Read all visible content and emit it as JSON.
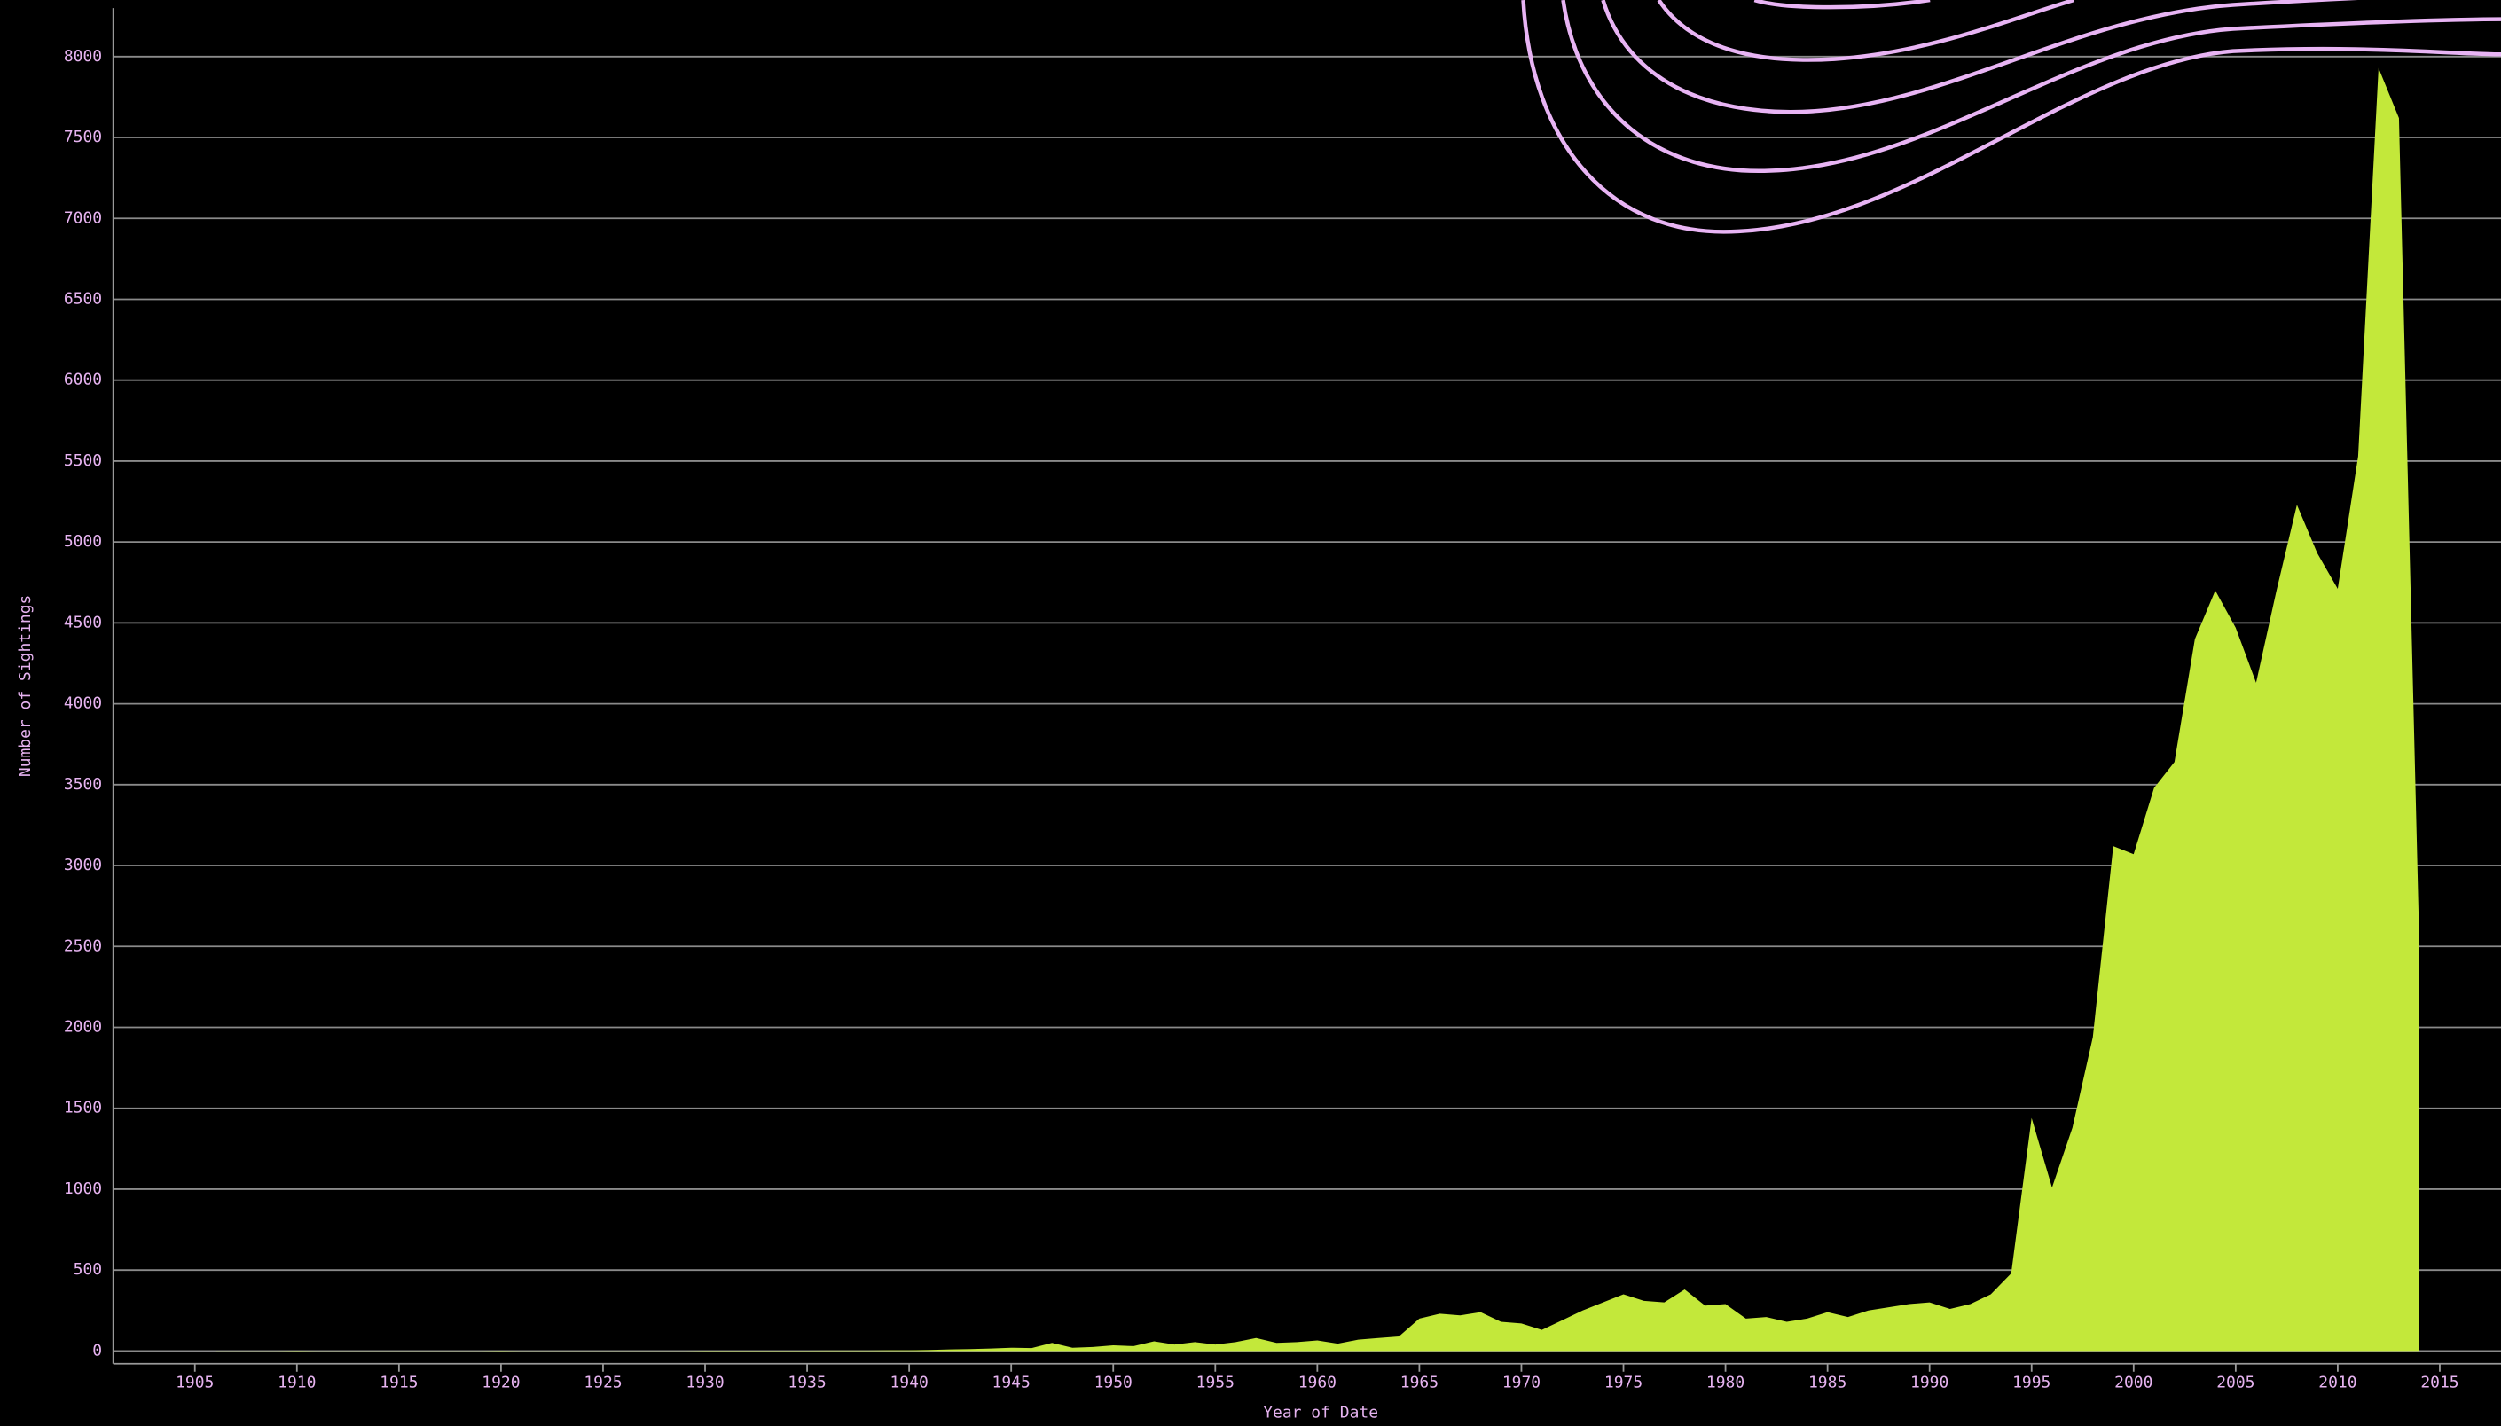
{
  "chart_data": {
    "type": "area",
    "x_label": "Year of Date",
    "y_label": "Number of Sightings",
    "x": [
      1906,
      1907,
      1908,
      1909,
      1910,
      1911,
      1912,
      1913,
      1914,
      1915,
      1916,
      1917,
      1918,
      1919,
      1920,
      1921,
      1922,
      1923,
      1924,
      1925,
      1926,
      1927,
      1928,
      1929,
      1930,
      1931,
      1932,
      1933,
      1934,
      1935,
      1936,
      1937,
      1938,
      1939,
      1940,
      1941,
      1942,
      1943,
      1944,
      1945,
      1946,
      1947,
      1948,
      1949,
      1950,
      1951,
      1952,
      1953,
      1954,
      1955,
      1956,
      1957,
      1958,
      1959,
      1960,
      1961,
      1962,
      1963,
      1964,
      1965,
      1966,
      1967,
      1968,
      1969,
      1970,
      1971,
      1972,
      1973,
      1974,
      1975,
      1976,
      1977,
      1978,
      1979,
      1980,
      1981,
      1982,
      1983,
      1984,
      1985,
      1986,
      1987,
      1988,
      1989,
      1990,
      1991,
      1992,
      1993,
      1994,
      1995,
      1996,
      1997,
      1998,
      1999,
      2000,
      2001,
      2002,
      2003,
      2004,
      2005,
      2006,
      2007,
      2008,
      2009,
      2010,
      2011,
      2012,
      2013,
      2014
    ],
    "values": [
      1,
      1,
      1,
      1,
      2,
      1,
      1,
      1,
      1,
      1,
      1,
      1,
      1,
      1,
      2,
      1,
      1,
      1,
      1,
      1,
      1,
      1,
      1,
      1,
      2,
      2,
      2,
      2,
      2,
      2,
      3,
      3,
      3,
      4,
      4,
      6,
      10,
      12,
      15,
      20,
      18,
      50,
      20,
      25,
      35,
      30,
      60,
      40,
      55,
      40,
      55,
      80,
      50,
      55,
      65,
      45,
      70,
      80,
      90,
      200,
      230,
      220,
      240,
      180,
      170,
      130,
      190,
      250,
      300,
      350,
      310,
      300,
      380,
      280,
      290,
      200,
      210,
      180,
      200,
      240,
      210,
      250,
      270,
      290,
      300,
      260,
      290,
      350,
      480,
      1440,
      1010,
      1380,
      1940,
      3120,
      3070,
      3480,
      3640,
      4400,
      4700,
      4470,
      4130,
      4700,
      5230,
      4930,
      4710,
      5530,
      7930,
      7620,
      2500
    ],
    "color": "#c3e83a",
    "xlim": [
      1901,
      2018
    ],
    "ylim": [
      0,
      8300
    ],
    "xticks": [
      1905,
      1910,
      1915,
      1920,
      1925,
      1930,
      1935,
      1940,
      1945,
      1950,
      1955,
      1960,
      1965,
      1970,
      1975,
      1980,
      1985,
      1990,
      1995,
      2000,
      2005,
      2010,
      2015
    ],
    "yticks": [
      0,
      500,
      1000,
      1500,
      2000,
      2500,
      3000,
      3500,
      4000,
      4500,
      5000,
      5500,
      6000,
      6500,
      7000,
      7500,
      8000
    ],
    "grid": true
  }
}
